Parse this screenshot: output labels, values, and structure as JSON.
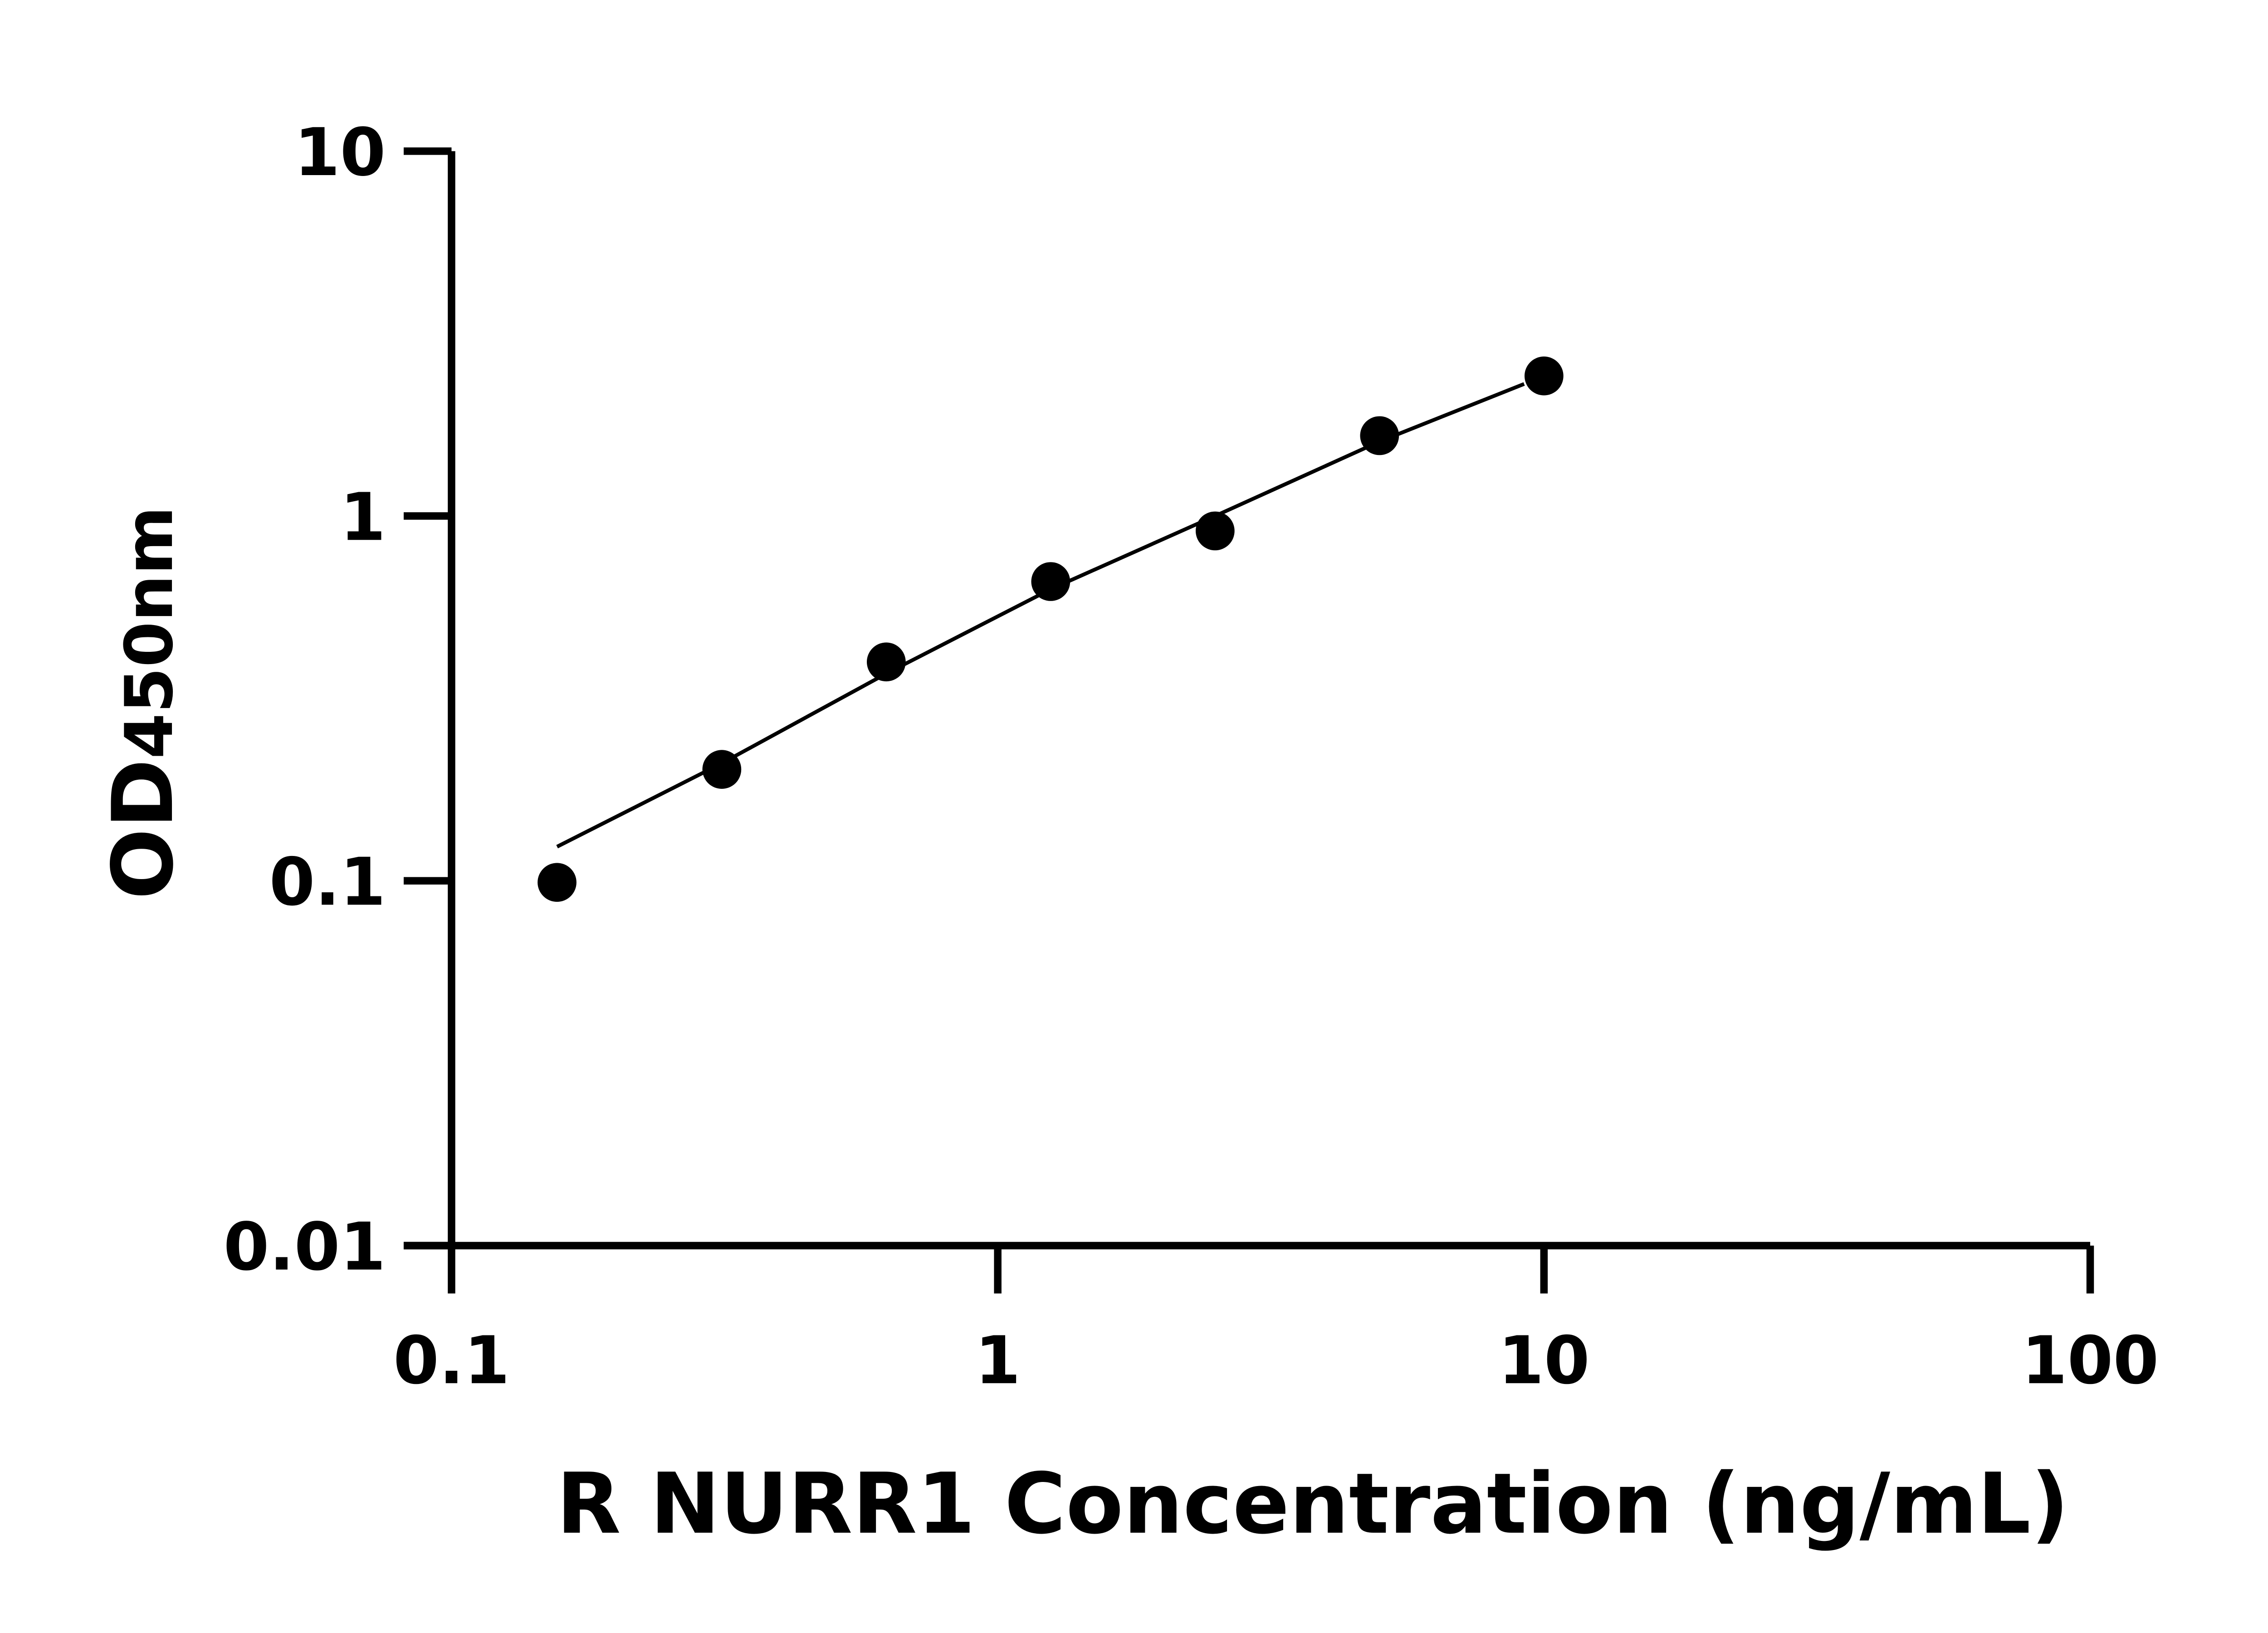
{
  "chart_data": {
    "type": "scatter",
    "title": "",
    "xlabel": "R NURR1 Concentration (ng/mL)",
    "ylabel_main": "OD",
    "ylabel_sub": "450nm",
    "x_scale": "log",
    "y_scale": "log",
    "xlim": [
      0.1,
      100
    ],
    "ylim": [
      0.01,
      10
    ],
    "x_ticks": [
      0.1,
      1,
      10,
      100
    ],
    "x_tick_labels": [
      "0.1",
      "1",
      "10",
      "100"
    ],
    "y_ticks": [
      0.01,
      0.1,
      1,
      10
    ],
    "y_tick_labels": [
      "0.01",
      "0.1",
      "1",
      "10"
    ],
    "grid": false,
    "legend": "none",
    "marker_color": "#000000",
    "points": {
      "x": [
        0.156,
        0.3125,
        0.625,
        1.25,
        2.5,
        5,
        10
      ],
      "y": [
        0.099,
        0.202,
        0.398,
        0.661,
        0.91,
        1.66,
        2.42
      ]
    },
    "fit_curve": {
      "x": [
        0.156,
        0.3125,
        0.625,
        1.25,
        2.5,
        5,
        9.2
      ],
      "y": [
        0.124,
        0.21,
        0.37,
        0.63,
        1.0,
        1.6,
        2.3
      ]
    }
  }
}
